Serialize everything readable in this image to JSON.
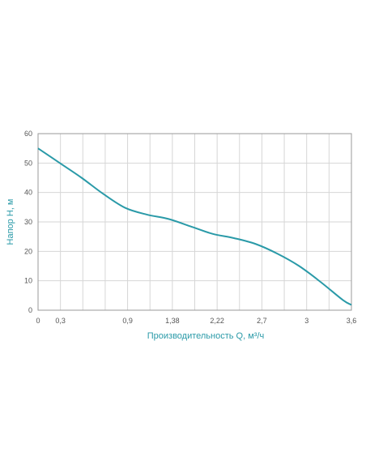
{
  "colors": {
    "line": "#2a9aa8",
    "axis_title": "#2a9aa8",
    "grid": "#d6d6d6",
    "frame": "#9a9a9a",
    "tick_text": "#555555"
  },
  "chart_data": {
    "type": "line",
    "title": "",
    "xlabel": "Производительность Q, м³/ч",
    "ylabel": "Напор H, м",
    "xlim": [
      0,
      3.6
    ],
    "ylim": [
      0,
      60
    ],
    "grid": true,
    "x_tick_labels": [
      "0",
      "0,3",
      "0,9",
      "1,38",
      "2,22",
      "2,7",
      "3",
      "3,6"
    ],
    "y_tick_labels": [
      "0",
      "10",
      "20",
      "30",
      "40",
      "50",
      "60"
    ],
    "series": [
      {
        "x": [
          0,
          0.25,
          0.5,
          0.75,
          1.0,
          1.25,
          1.5,
          1.75,
          2.0,
          2.25,
          2.5,
          2.75,
          3.0,
          3.25,
          3.5,
          3.6
        ],
        "y": [
          55,
          50,
          45,
          39.5,
          34.8,
          32.5,
          31,
          28.5,
          26,
          24.5,
          22.5,
          19.2,
          15,
          9.5,
          3.5,
          1.8
        ]
      }
    ]
  }
}
